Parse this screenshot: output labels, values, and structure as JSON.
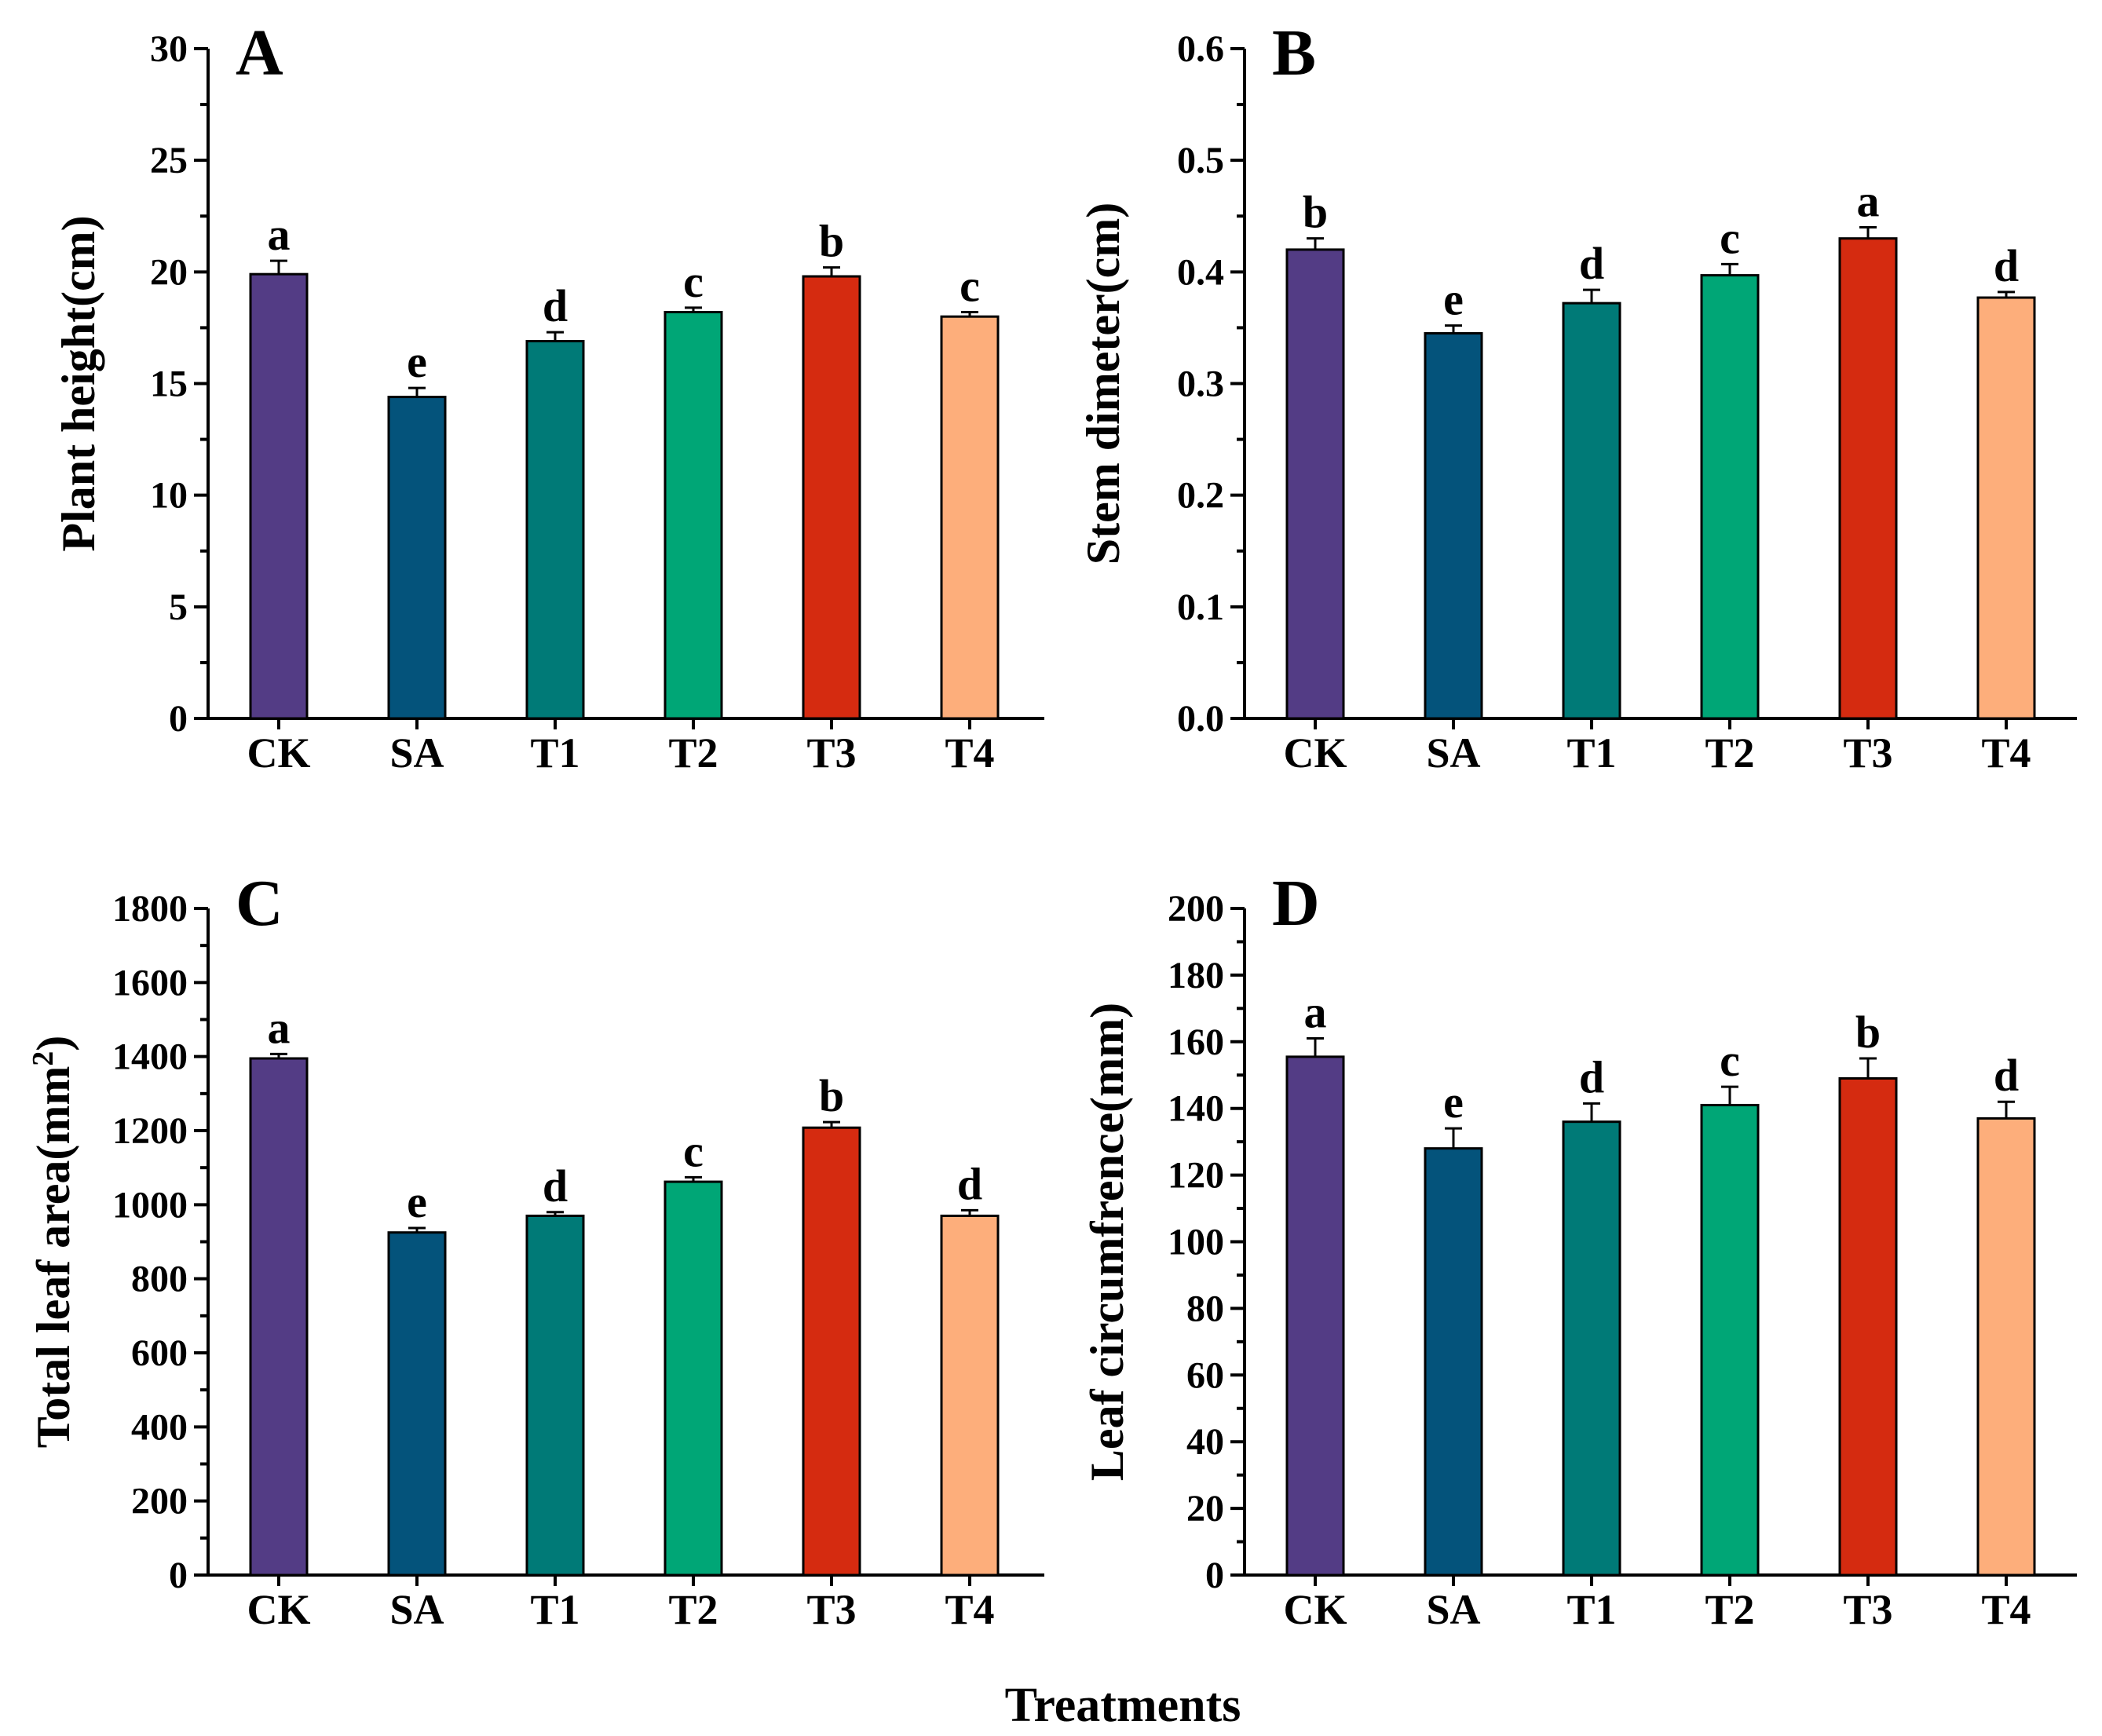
{
  "figure": {
    "shared_xlabel": "Treatments"
  },
  "chart_data": [
    {
      "type": "bar",
      "panel": "A",
      "ylabel": "Plant height(cm)",
      "ylabel_sup": "",
      "ylabel_end": "",
      "xlabel": "Treatments",
      "categories": [
        "CK",
        "SA",
        "T1",
        "T2",
        "T3",
        "T4"
      ],
      "values": [
        19.9,
        14.4,
        16.9,
        18.2,
        19.8,
        18.0
      ],
      "errors": [
        0.6,
        0.4,
        0.4,
        0.2,
        0.4,
        0.2
      ],
      "significance": [
        "a",
        "e",
        "d",
        "c",
        "b",
        "c"
      ],
      "colors": [
        "#533c85",
        "#04537b",
        "#007a77",
        "#00a676",
        "#d52b10",
        "#fdae7b"
      ],
      "ylim": [
        0,
        30
      ],
      "yticks": [
        0,
        5,
        10,
        15,
        20,
        25,
        30
      ],
      "minor_ticks": true
    },
    {
      "type": "bar",
      "panel": "B",
      "ylabel": "Stem dimeter(cm)",
      "ylabel_sup": "",
      "ylabel_end": "",
      "xlabel": "Treatments",
      "categories": [
        "CK",
        "SA",
        "T1",
        "T2",
        "T3",
        "T4"
      ],
      "values": [
        0.42,
        0.345,
        0.372,
        0.397,
        0.43,
        0.377
      ],
      "errors": [
        0.01,
        0.007,
        0.012,
        0.01,
        0.01,
        0.005
      ],
      "significance": [
        "b",
        "e",
        "d",
        "c",
        "a",
        "d"
      ],
      "colors": [
        "#533c85",
        "#04537b",
        "#007a77",
        "#00a676",
        "#d52b10",
        "#fdae7b"
      ],
      "ylim": [
        0,
        0.6
      ],
      "yticks": [
        0.0,
        0.1,
        0.2,
        0.3,
        0.4,
        0.5,
        0.6
      ],
      "ytick_labels": [
        "0.0",
        "0.1",
        "0.2",
        "0.3",
        "0.4",
        "0.5",
        "0.6"
      ],
      "minor_ticks": true
    },
    {
      "type": "bar",
      "panel": "C",
      "ylabel": "Total leaf area(mm",
      "ylabel_sup": "2",
      "ylabel_end": ")",
      "xlabel": "Treatments",
      "categories": [
        "CK",
        "SA",
        "T1",
        "T2",
        "T3",
        "T4"
      ],
      "values": [
        1395,
        925,
        970,
        1062,
        1208,
        970
      ],
      "errors": [
        12,
        12,
        10,
        12,
        15,
        15
      ],
      "significance": [
        "a",
        "e",
        "d",
        "c",
        "b",
        "d"
      ],
      "colors": [
        "#533c85",
        "#04537b",
        "#007a77",
        "#00a676",
        "#d52b10",
        "#fdae7b"
      ],
      "ylim": [
        0,
        1800
      ],
      "yticks": [
        0,
        200,
        400,
        600,
        800,
        1000,
        1200,
        1400,
        1600,
        1800
      ],
      "minor_ticks": true
    },
    {
      "type": "bar",
      "panel": "D",
      "ylabel": "Leaf circumfrence(mm)",
      "ylabel_sup": "",
      "ylabel_end": "",
      "xlabel": "Treatments",
      "categories": [
        "CK",
        "SA",
        "T1",
        "T2",
        "T3",
        "T4"
      ],
      "values": [
        155.5,
        128,
        136,
        141,
        149,
        137
      ],
      "errors": [
        5.5,
        6,
        5.5,
        5.5,
        6,
        5
      ],
      "significance": [
        "a",
        "e",
        "d",
        "c",
        "b",
        "d"
      ],
      "colors": [
        "#533c85",
        "#04537b",
        "#007a77",
        "#00a676",
        "#d52b10",
        "#fdae7b"
      ],
      "ylim": [
        0,
        200
      ],
      "yticks": [
        0,
        20,
        40,
        60,
        80,
        100,
        120,
        140,
        160,
        180,
        200
      ],
      "minor_ticks": true
    }
  ]
}
